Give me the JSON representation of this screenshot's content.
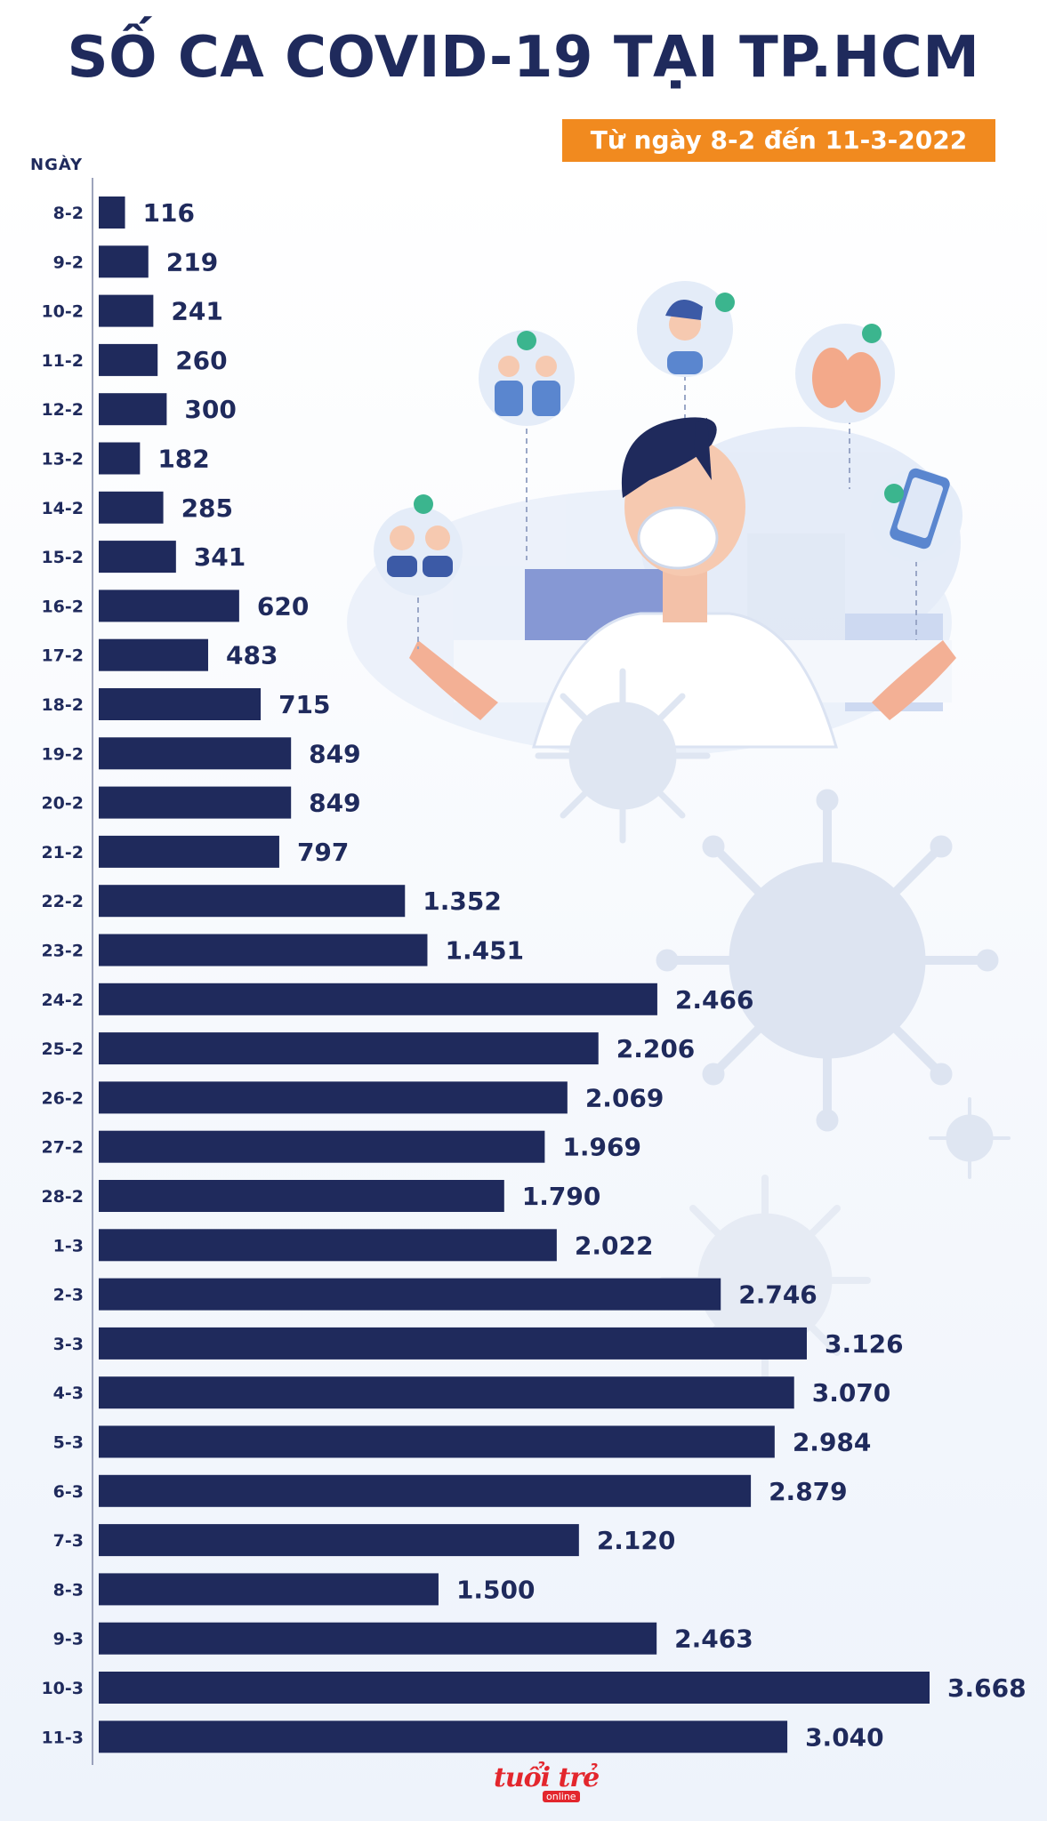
{
  "header": {
    "title": "SỐ CA COVID-19 TẠI TP.HCM",
    "subtitle": "Từ ngày 8-2 đến 11-3-2022"
  },
  "axis": {
    "day_label": "NGÀY"
  },
  "brand": {
    "logo_text": "tuổi trẻ",
    "logo_sub": "online"
  },
  "colors": {
    "bar": "#1f2a5c",
    "accent": "#f18a1f",
    "brand_red": "#e3262d"
  },
  "chart_data": {
    "type": "bar",
    "orientation": "horizontal",
    "title": "SỐ CA COVID-19 TẠI TP.HCM",
    "subtitle": "Từ ngày 8-2 đến 11-3-2022",
    "ylabel": "NGÀY",
    "categories": [
      "8-2",
      "9-2",
      "10-2",
      "11-2",
      "12-2",
      "13-2",
      "14-2",
      "15-2",
      "16-2",
      "17-2",
      "18-2",
      "19-2",
      "20-2",
      "21-2",
      "22-2",
      "23-2",
      "24-2",
      "25-2",
      "26-2",
      "27-2",
      "28-2",
      "1-3",
      "2-3",
      "3-3",
      "4-3",
      "5-3",
      "6-3",
      "7-3",
      "8-3",
      "9-3",
      "10-3",
      "11-3"
    ],
    "values": [
      116,
      219,
      241,
      260,
      300,
      182,
      285,
      341,
      620,
      483,
      715,
      849,
      849,
      797,
      1352,
      1451,
      2466,
      2206,
      2069,
      1969,
      1790,
      2022,
      2746,
      3126,
      3070,
      2984,
      2879,
      2120,
      1500,
      2463,
      3668,
      3040
    ],
    "value_labels": [
      "116",
      "219",
      "241",
      "260",
      "300",
      "182",
      "285",
      "341",
      "620",
      "483",
      "715",
      "849",
      "849",
      "797",
      "1.352",
      "1.451",
      "2.466",
      "2.206",
      "2.069",
      "1.969",
      "1.790",
      "2.022",
      "2.746",
      "3.126",
      "3.070",
      "2.984",
      "2.879",
      "2.120",
      "1.500",
      "2.463",
      "3.668",
      "3.040"
    ],
    "xlim": [
      0,
      3668
    ]
  }
}
